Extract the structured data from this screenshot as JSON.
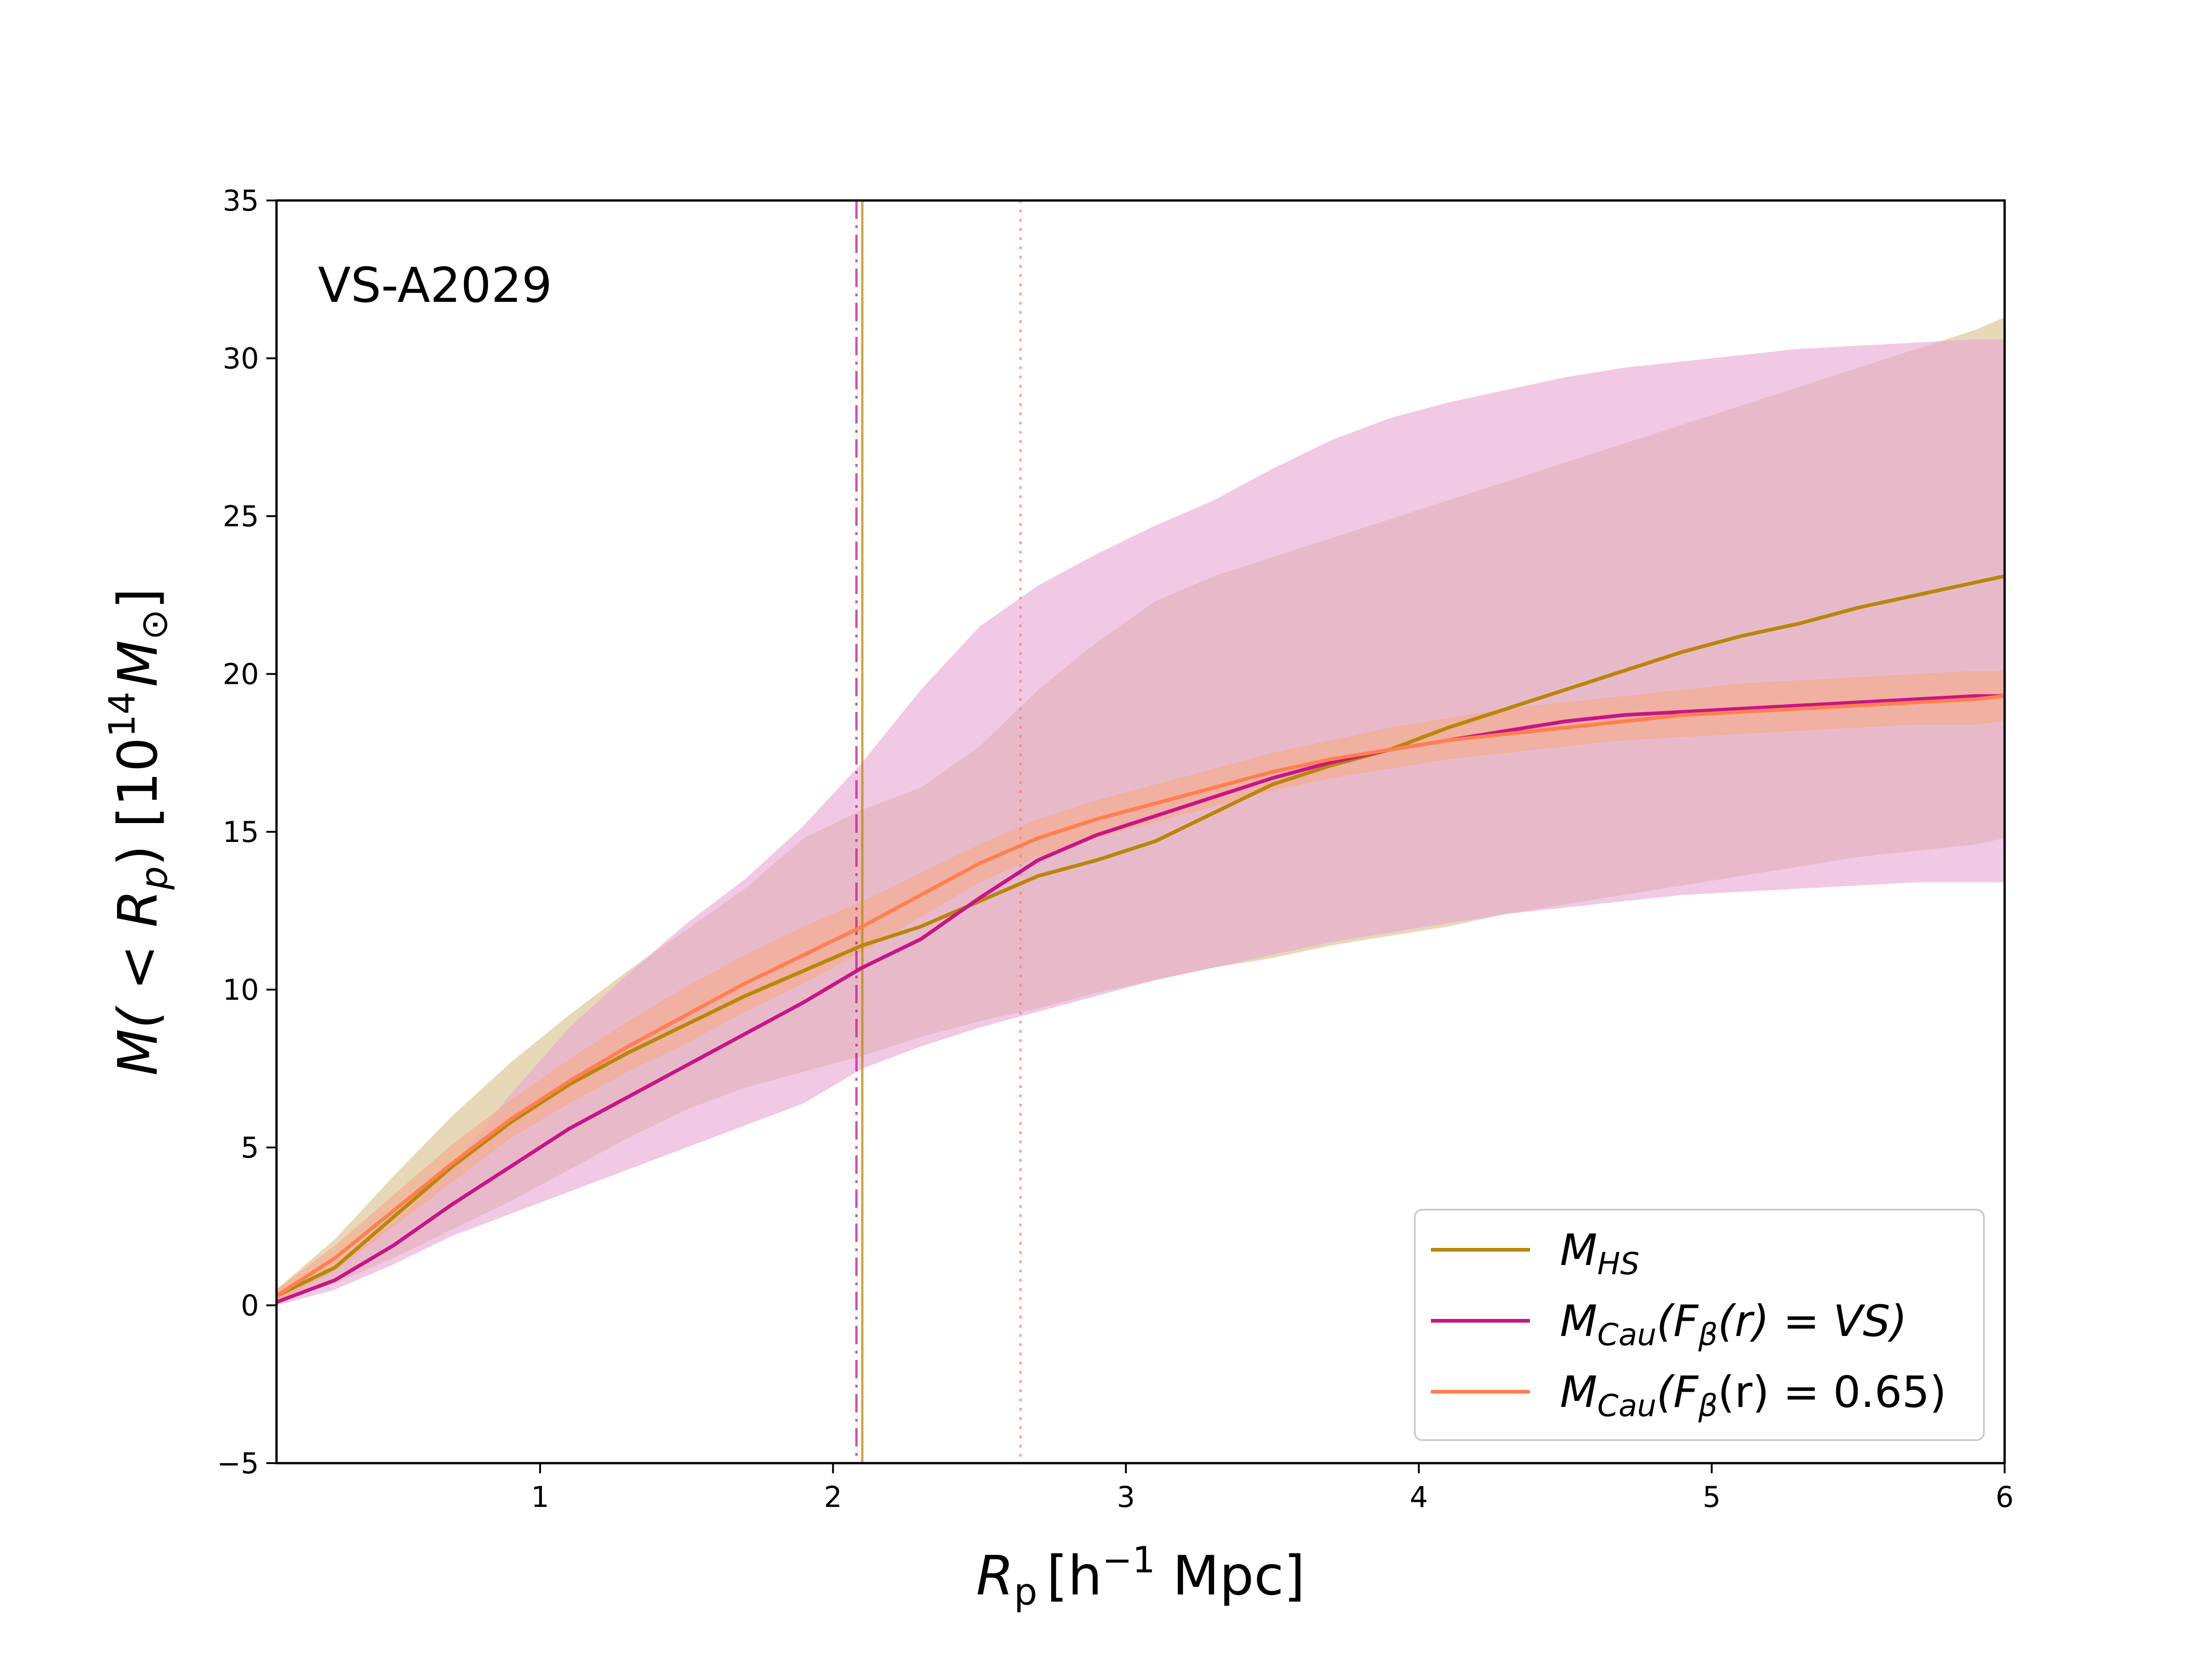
{
  "chart_data": {
    "type": "line",
    "annotation": "VS-A2029",
    "xlabel": {
      "main": "R",
      "sub": "p",
      "bracket_open": "[h",
      "sup": "−1",
      "unit": " Mpc]"
    },
    "ylabel": {
      "prefix": "M( < R",
      "sub": "p",
      "mid": ") [10",
      "sup": "14",
      "unit": "M",
      "unit_sub": "⊙",
      "close": "]"
    },
    "xlim": [
      0.1,
      6.0
    ],
    "ylim": [
      -5,
      35
    ],
    "xticks": [
      1,
      2,
      3,
      4,
      5,
      6
    ],
    "xtick_labels": [
      "1",
      "2",
      "3",
      "4",
      "5",
      "6"
    ],
    "yticks": [
      -5,
      0,
      5,
      10,
      15,
      20,
      25,
      30,
      35
    ],
    "ytick_labels": [
      "−5",
      "0",
      "5",
      "10",
      "15",
      "20",
      "25",
      "30",
      "35"
    ],
    "grid": false,
    "legend_position": "lower-right",
    "vlines": [
      {
        "name": "hs",
        "x": 2.1,
        "style": "solid",
        "color": "#b8860b"
      },
      {
        "name": "cau-vs",
        "x": 2.08,
        "style": "dashdot",
        "color": "#c71585"
      },
      {
        "name": "cau-065",
        "x": 2.64,
        "style": "dotted",
        "color": "#fa8072"
      }
    ],
    "series": [
      {
        "name": "M_HS",
        "label_main": "M",
        "label_sub": "HS",
        "label_rest": "",
        "color": "#b8860b",
        "band_color": "#d9c08c",
        "x": [
          0.1,
          0.3,
          0.5,
          0.7,
          0.9,
          1.1,
          1.3,
          1.5,
          1.7,
          1.9,
          2.1,
          2.3,
          2.5,
          2.7,
          2.9,
          3.1,
          3.3,
          3.5,
          3.7,
          3.9,
          4.1,
          4.3,
          4.5,
          4.7,
          4.9,
          5.1,
          5.3,
          5.5,
          5.7,
          5.9,
          6.0
        ],
        "y": [
          0.3,
          1.2,
          2.8,
          4.4,
          5.8,
          7.0,
          8.0,
          8.9,
          9.8,
          10.6,
          11.4,
          12.0,
          12.8,
          13.6,
          14.1,
          14.7,
          15.6,
          16.5,
          17.1,
          17.6,
          18.3,
          18.9,
          19.5,
          20.1,
          20.7,
          21.2,
          21.6,
          22.1,
          22.5,
          22.9,
          23.1
        ],
        "band_upper": [
          0.5,
          2.1,
          4.1,
          6.0,
          7.7,
          9.2,
          10.6,
          11.9,
          13.2,
          14.8,
          15.7,
          16.4,
          17.7,
          19.5,
          21.0,
          22.3,
          23.1,
          23.7,
          24.3,
          24.9,
          25.5,
          26.1,
          26.7,
          27.3,
          27.9,
          28.5,
          29.1,
          29.7,
          30.3,
          30.9,
          31.3
        ],
        "band_lower": [
          0.1,
          0.7,
          1.5,
          2.4,
          3.3,
          4.3,
          5.3,
          6.2,
          6.9,
          7.4,
          7.9,
          8.5,
          9.0,
          9.4,
          9.9,
          10.3,
          10.7,
          11.0,
          11.4,
          11.7,
          12.0,
          12.4,
          12.7,
          13.0,
          13.3,
          13.6,
          13.9,
          14.2,
          14.4,
          14.6,
          14.8
        ]
      },
      {
        "name": "M_Cau(F_beta(r) = VS)",
        "label_main": "M",
        "label_sub": "Cau",
        "label_rest": "(F",
        "label_sub2": "β",
        "label_tail": "(r) = VS)",
        "color": "#c71585",
        "band_color": "#e8a8d4",
        "x": [
          0.1,
          0.3,
          0.5,
          0.7,
          0.9,
          1.1,
          1.3,
          1.5,
          1.7,
          1.9,
          2.1,
          2.3,
          2.5,
          2.7,
          2.9,
          3.1,
          3.3,
          3.5,
          3.7,
          3.9,
          4.1,
          4.3,
          4.5,
          4.7,
          4.9,
          5.1,
          5.3,
          5.5,
          5.7,
          5.9,
          6.0
        ],
        "y": [
          0.1,
          0.8,
          1.9,
          3.2,
          4.4,
          5.6,
          6.6,
          7.6,
          8.6,
          9.6,
          10.7,
          11.6,
          12.9,
          14.1,
          14.9,
          15.5,
          16.1,
          16.7,
          17.2,
          17.6,
          17.9,
          18.2,
          18.5,
          18.7,
          18.8,
          18.9,
          19.0,
          19.1,
          19.2,
          19.3,
          19.3
        ],
        "band_upper": [
          0.3,
          1.3,
          2.6,
          4.4,
          6.7,
          8.8,
          10.5,
          12.1,
          13.5,
          15.2,
          17.2,
          19.5,
          21.5,
          22.8,
          23.8,
          24.7,
          25.5,
          26.5,
          27.4,
          28.1,
          28.6,
          29.0,
          29.4,
          29.7,
          29.9,
          30.1,
          30.3,
          30.4,
          30.5,
          30.6,
          30.6
        ],
        "band_lower": [
          0.0,
          0.5,
          1.3,
          2.2,
          2.9,
          3.6,
          4.3,
          5.0,
          5.7,
          6.4,
          7.5,
          8.2,
          8.8,
          9.3,
          9.8,
          10.3,
          10.7,
          11.1,
          11.5,
          11.8,
          12.1,
          12.4,
          12.6,
          12.8,
          13.0,
          13.1,
          13.2,
          13.3,
          13.4,
          13.4,
          13.4
        ]
      },
      {
        "name": "M_Cau(F_beta(r) = 0.65)",
        "label_main": "M",
        "label_sub": "Cau",
        "label_rest": "(F",
        "label_sub2": "β",
        "label_tail": "(r) = 0.65)",
        "color": "#ff7f50",
        "band_color": "#f6a98a",
        "x": [
          0.1,
          0.3,
          0.5,
          0.7,
          0.9,
          1.1,
          1.3,
          1.5,
          1.7,
          1.9,
          2.1,
          2.3,
          2.5,
          2.7,
          2.9,
          3.1,
          3.3,
          3.5,
          3.7,
          3.9,
          4.1,
          4.3,
          4.5,
          4.7,
          4.9,
          5.1,
          5.3,
          5.5,
          5.7,
          5.9,
          6.0
        ],
        "y": [
          0.3,
          1.5,
          3.0,
          4.5,
          5.9,
          7.1,
          8.2,
          9.2,
          10.2,
          11.1,
          12.0,
          13.0,
          14.0,
          14.8,
          15.4,
          15.9,
          16.4,
          16.9,
          17.3,
          17.6,
          17.9,
          18.1,
          18.3,
          18.5,
          18.7,
          18.8,
          18.9,
          19.0,
          19.1,
          19.2,
          19.3
        ],
        "band_upper": [
          0.5,
          1.9,
          3.5,
          5.1,
          6.5,
          7.8,
          9.0,
          10.1,
          11.1,
          12.0,
          12.8,
          13.7,
          14.6,
          15.4,
          16.0,
          16.5,
          17.0,
          17.5,
          17.9,
          18.3,
          18.6,
          18.9,
          19.1,
          19.3,
          19.5,
          19.7,
          19.8,
          19.9,
          20.0,
          20.1,
          20.1
        ],
        "band_lower": [
          0.1,
          1.1,
          2.5,
          3.9,
          5.3,
          6.4,
          7.4,
          8.3,
          9.3,
          10.2,
          11.2,
          12.3,
          13.4,
          14.2,
          14.8,
          15.3,
          15.8,
          16.3,
          16.7,
          17.0,
          17.3,
          17.5,
          17.7,
          17.9,
          18.0,
          18.1,
          18.2,
          18.3,
          18.4,
          18.4,
          18.5
        ]
      }
    ]
  }
}
